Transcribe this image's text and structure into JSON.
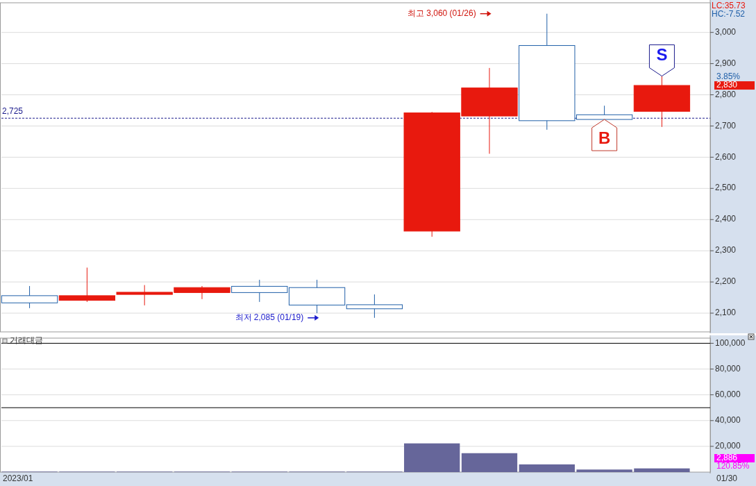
{
  "chart_data": [
    {
      "type": "candlestick",
      "categories": [
        null,
        null,
        null,
        null,
        null,
        null,
        null,
        null,
        null,
        null,
        null,
        null
      ],
      "ohlc": [
        [
          2156,
          2187,
          2116,
          2133
        ],
        [
          2141,
          2246,
          2136,
          2156
        ],
        [
          2160,
          2190,
          2125,
          2167
        ],
        [
          2166,
          2187,
          2145,
          2182
        ],
        [
          2186,
          2207,
          2136,
          2166
        ],
        [
          2182,
          2207,
          2100,
          2126
        ],
        [
          2127,
          2160,
          2085,
          2114
        ],
        [
          2363,
          2745,
          2345,
          2742
        ],
        [
          2732,
          2886,
          2611,
          2822
        ],
        [
          2958,
          3060,
          2688,
          2717
        ],
        [
          2736,
          2765,
          2721,
          2721
        ],
        [
          2747,
          2860,
          2697,
          2830
        ]
      ],
      "colors": [
        "#1f5fa8",
        "#e8190e",
        "#e8190e",
        "#e8190e",
        "#1f5fa8",
        "#1f5fa8",
        "#1f5fa8",
        "#e8190e",
        "#e8190e",
        "#1f5fa8",
        "#1f5fa8",
        "#e8190e"
      ],
      "ylim": [
        2040,
        3095
      ],
      "yticks": [
        {
          "value": 2100,
          "label": "2,100"
        },
        {
          "value": 2200,
          "label": "2,200"
        },
        {
          "value": 2300,
          "label": "2,300"
        },
        {
          "value": 2400,
          "label": "2,400"
        },
        {
          "value": 2500,
          "label": "2,500"
        },
        {
          "value": 2600,
          "label": "2,600"
        },
        {
          "value": 2700,
          "label": "2,700"
        },
        {
          "value": 2800,
          "label": "2,800"
        },
        {
          "value": 2900,
          "label": "2,900"
        },
        {
          "value": 3000,
          "label": "3,000"
        }
      ],
      "grid": "y",
      "ref_lines": [
        {
          "axis": "y",
          "value": 2725,
          "label": "2,725",
          "color": "#1a1a8c",
          "line_style": "dashed"
        }
      ],
      "annotations": [
        "최고 3,060 (01/26)",
        "최저 2,085 (01/19)",
        {
          "text": "B",
          "y": 2721
        },
        {
          "text": "S",
          "y": 2860
        },
        "LC:35.73",
        "HC:-7.52",
        "2,830",
        "3.85%"
      ]
    },
    {
      "type": "bar",
      "title": "거래대금",
      "categories": [
        null,
        null,
        null,
        null,
        null,
        null,
        null,
        null,
        null,
        null,
        null,
        null
      ],
      "values": [
        400,
        400,
        400,
        400,
        400,
        400,
        400,
        22300,
        14700,
        6000,
        2000,
        2886
      ],
      "color": "#66669a",
      "ylim": [
        0,
        104000
      ],
      "yticks": [
        {
          "value": 20000,
          "label": "20,000"
        },
        {
          "value": 40000,
          "label": "40,000"
        },
        {
          "value": 60000,
          "label": "60,000"
        },
        {
          "value": 80000,
          "label": "80,000"
        },
        {
          "value": 100000,
          "label": "100,000"
        }
      ],
      "grid": "y",
      "ref_lines": [
        {
          "axis": "y",
          "value": 100000,
          "color": "#000000"
        },
        {
          "axis": "y",
          "value": 50000,
          "color": "#000000"
        }
      ],
      "annotations": [
        "2,886",
        "120.85%",
        "2023/01",
        "01/30"
      ]
    }
  ]
}
